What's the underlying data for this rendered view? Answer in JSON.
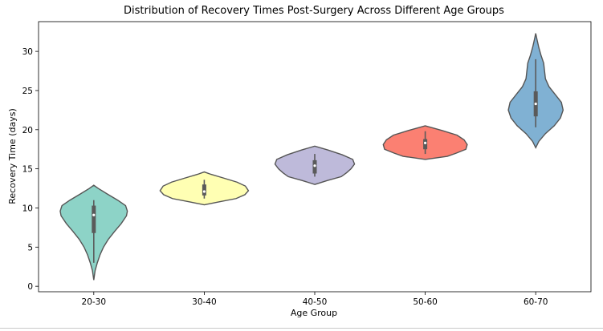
{
  "chart_data": {
    "type": "violin",
    "title": "Distribution of Recovery Times Post-Surgery Across Different Age Groups",
    "xlabel": "Age Group",
    "ylabel": "Recovery Time (days)",
    "ylim": [
      -0.7,
      33.8
    ],
    "yticks": [
      0,
      5,
      10,
      15,
      20,
      25,
      30
    ],
    "grid": false,
    "categories": [
      "20-30",
      "30-40",
      "40-50",
      "50-60",
      "60-70"
    ],
    "colors": [
      "#8dd3c7",
      "#ffffb3",
      "#bebada",
      "#fb8072",
      "#80b1d3"
    ],
    "violins": [
      {
        "category": "20-30",
        "whisker": [
          3.0,
          11.0
        ],
        "box": [
          6.8,
          10.3
        ],
        "median": 9.1,
        "density": [
          [
            0.8,
            0.0
          ],
          [
            2.0,
            0.03
          ],
          [
            3.0,
            0.08
          ],
          [
            4.0,
            0.14
          ],
          [
            5.0,
            0.22
          ],
          [
            6.0,
            0.33
          ],
          [
            7.0,
            0.47
          ],
          [
            8.0,
            0.62
          ],
          [
            9.0,
            0.74
          ],
          [
            9.6,
            0.76
          ],
          [
            10.3,
            0.72
          ],
          [
            11.0,
            0.54
          ],
          [
            11.8,
            0.3
          ],
          [
            12.5,
            0.1
          ],
          [
            12.9,
            0.0
          ]
        ]
      },
      {
        "category": "30-40",
        "whisker": [
          11.2,
          13.6
        ],
        "box": [
          11.6,
          13.0
        ],
        "median": 12.1,
        "density": [
          [
            10.4,
            0.0
          ],
          [
            10.8,
            0.35
          ],
          [
            11.2,
            0.72
          ],
          [
            11.7,
            0.92
          ],
          [
            12.2,
            1.0
          ],
          [
            12.8,
            0.93
          ],
          [
            13.3,
            0.74
          ],
          [
            13.8,
            0.45
          ],
          [
            14.3,
            0.15
          ],
          [
            14.6,
            0.0
          ]
        ]
      },
      {
        "category": "40-50",
        "whisker": [
          14.0,
          16.9
        ],
        "box": [
          14.4,
          16.1
        ],
        "median": 15.4,
        "density": [
          [
            13.0,
            0.0
          ],
          [
            13.5,
            0.28
          ],
          [
            14.0,
            0.6
          ],
          [
            14.5,
            0.72
          ],
          [
            15.0,
            0.82
          ],
          [
            15.6,
            0.9
          ],
          [
            16.2,
            0.86
          ],
          [
            16.8,
            0.62
          ],
          [
            17.4,
            0.3
          ],
          [
            17.9,
            0.0
          ]
        ]
      },
      {
        "category": "50-60",
        "whisker": [
          16.9,
          19.8
        ],
        "box": [
          17.5,
          18.8
        ],
        "median": 18.3,
        "density": [
          [
            16.2,
            0.0
          ],
          [
            16.6,
            0.5
          ],
          [
            17.0,
            0.7
          ],
          [
            17.5,
            0.92
          ],
          [
            18.1,
            0.95
          ],
          [
            18.7,
            0.88
          ],
          [
            19.3,
            0.72
          ],
          [
            19.9,
            0.38
          ],
          [
            20.5,
            0.0
          ]
        ]
      },
      {
        "category": "60-70",
        "whisker": [
          20.3,
          29.0
        ],
        "box": [
          21.7,
          24.9
        ],
        "median": 23.3,
        "density": [
          [
            17.7,
            0.0
          ],
          [
            18.5,
            0.07
          ],
          [
            19.5,
            0.22
          ],
          [
            20.5,
            0.42
          ],
          [
            21.5,
            0.56
          ],
          [
            22.5,
            0.62
          ],
          [
            23.5,
            0.58
          ],
          [
            24.5,
            0.44
          ],
          [
            25.5,
            0.3
          ],
          [
            26.5,
            0.22
          ],
          [
            27.5,
            0.2
          ],
          [
            28.5,
            0.18
          ],
          [
            29.5,
            0.12
          ],
          [
            30.5,
            0.07
          ],
          [
            31.5,
            0.03
          ],
          [
            32.3,
            0.0
          ]
        ]
      }
    ]
  }
}
